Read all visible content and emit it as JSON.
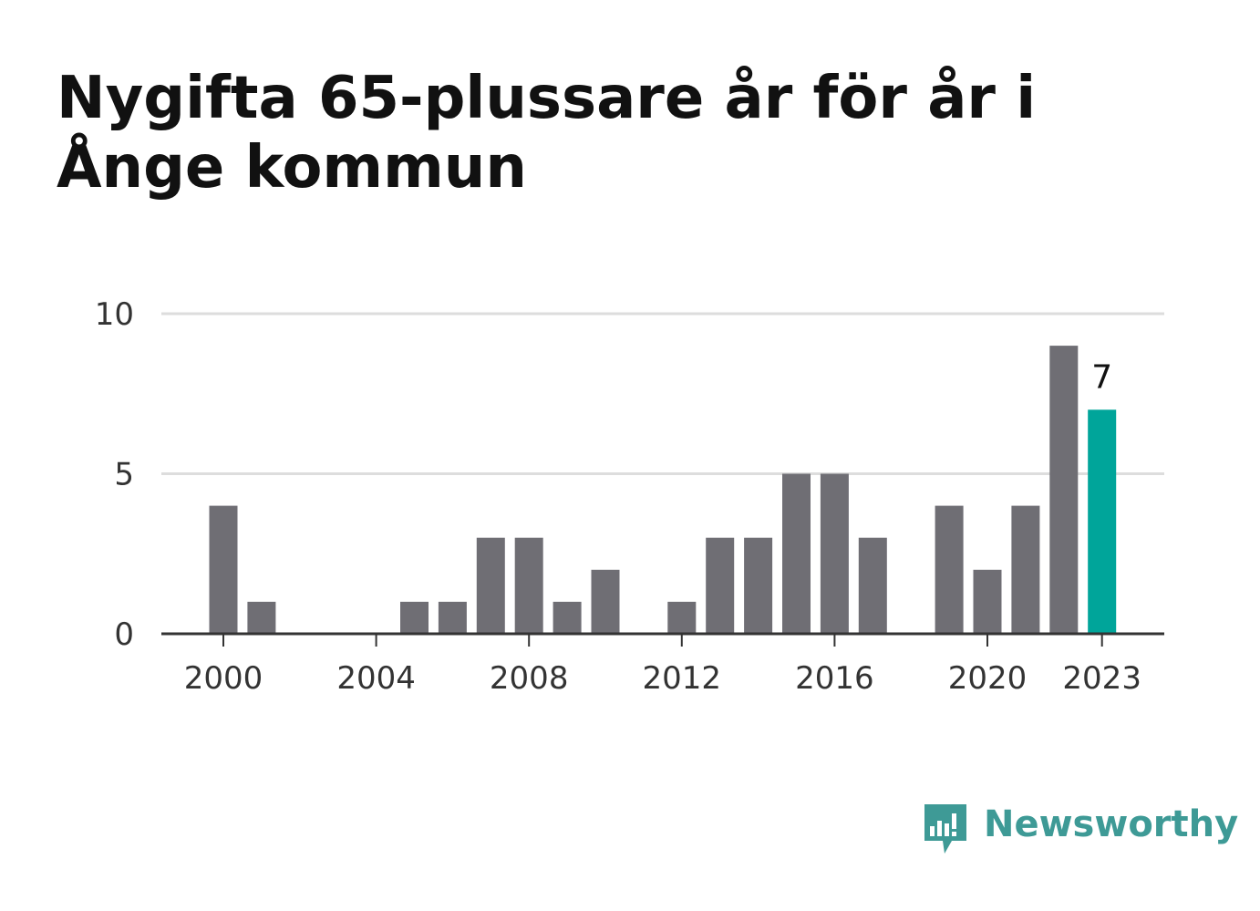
{
  "chart_data": {
    "type": "bar",
    "title": "Nygifta 65-plussare år för år i Ånge kommun",
    "x": [
      2000,
      2001,
      2002,
      2003,
      2004,
      2005,
      2006,
      2007,
      2008,
      2009,
      2010,
      2011,
      2012,
      2013,
      2014,
      2015,
      2016,
      2017,
      2018,
      2019,
      2020,
      2021,
      2022,
      2023
    ],
    "values": [
      4,
      1,
      0,
      0,
      0,
      1,
      1,
      3,
      3,
      1,
      2,
      0,
      1,
      3,
      3,
      5,
      5,
      3,
      0,
      4,
      2,
      4,
      9,
      7
    ],
    "x_tick_labels": [
      "2000",
      "2004",
      "2008",
      "2012",
      "2016",
      "2020",
      "2023"
    ],
    "y_tick_labels": [
      "0",
      "5",
      "10"
    ],
    "ylim": [
      0,
      10
    ],
    "grid": true,
    "highlight": {
      "year": 2023,
      "label": "7"
    },
    "colors": {
      "bar": "#6f6e74",
      "highlight": "#00a59a",
      "grid": "#dddddd",
      "axis": "#333333"
    }
  },
  "brand": {
    "name": "Newsworthy",
    "color": "#3e9a96"
  }
}
